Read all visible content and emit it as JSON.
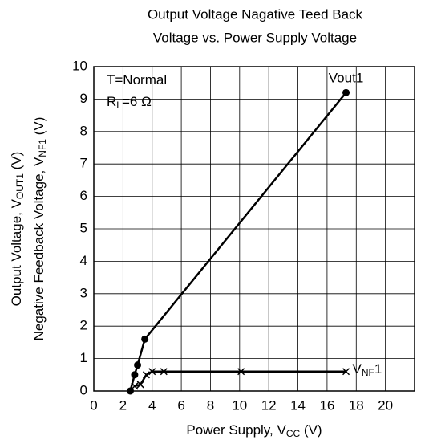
{
  "chart_data": {
    "type": "line",
    "title": [
      "Output Voltage Nagative Teed Back",
      "Voltage vs. Power Supply Voltage"
    ],
    "ylabel": [
      [
        "Output Voltage, V",
        "OUT1",
        " (V)"
      ],
      [
        "Negative Feedback Voltage, V",
        "NF1",
        " (V)"
      ]
    ],
    "xlabel": [
      "Power Supply, V",
      "CC",
      " (V)"
    ],
    "annotations": [
      [
        "T=Normal"
      ],
      [
        "R",
        "L",
        "=6 Ω"
      ]
    ],
    "xlim": [
      0,
      22
    ],
    "xticks": [
      0,
      2,
      4,
      6,
      8,
      10,
      12,
      14,
      16,
      18,
      20
    ],
    "ylim": [
      0,
      10
    ],
    "yticks": [
      0,
      1,
      2,
      3,
      4,
      5,
      6,
      7,
      8,
      9,
      10
    ],
    "grid": true,
    "series": [
      {
        "name": [
          "Vout1"
        ],
        "color": "#000000",
        "marker": "circle",
        "x": [
          2.5,
          2.8,
          3.0,
          3.5,
          17.3
        ],
        "values": [
          0,
          0.5,
          0.8,
          1.6,
          9.2
        ]
      },
      {
        "name": [
          "V",
          "NF",
          "1"
        ],
        "color": "#000000",
        "marker": "x",
        "x": [
          2.8,
          3.2,
          3.6,
          4.0,
          4.8,
          10.1,
          17.3
        ],
        "values": [
          0.15,
          0.2,
          0.5,
          0.6,
          0.6,
          0.6,
          0.6
        ]
      }
    ]
  }
}
